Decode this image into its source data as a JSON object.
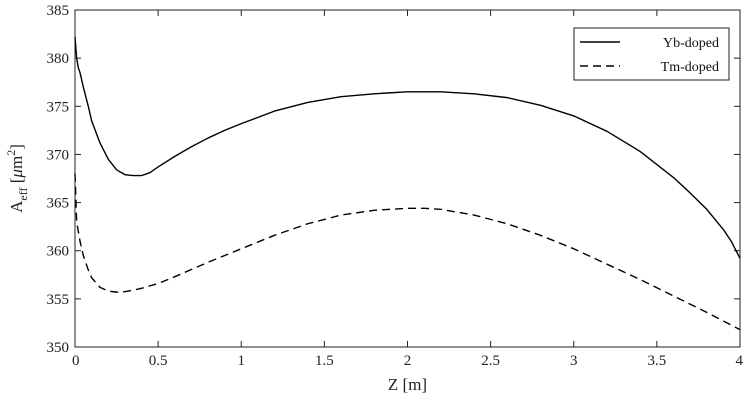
{
  "chart_data": {
    "type": "line",
    "title": "",
    "xlabel": "Z [m]",
    "ylabel": {
      "base": "A",
      "subscript": "eff",
      "unit_open": " [",
      "unit_mu": "μ",
      "unit_m": "m",
      "unit_sup": "2",
      "unit_close": "]"
    },
    "xlim": [
      0,
      4
    ],
    "ylim": [
      350,
      385
    ],
    "xticks": [
      "0",
      "0.5",
      "1",
      "1.5",
      "2",
      "2.5",
      "3",
      "3.5",
      "4"
    ],
    "yticks": [
      "350",
      "355",
      "360",
      "365",
      "370",
      "375",
      "380",
      "385"
    ],
    "grid": false,
    "legend_position": "top-right",
    "series": [
      {
        "name": "Yb-doped",
        "style": "solid",
        "color": "#000000",
        "x": [
          0,
          0.01,
          0.02,
          0.03,
          0.05,
          0.08,
          0.1,
          0.15,
          0.2,
          0.25,
          0.3,
          0.35,
          0.4,
          0.45,
          0.5,
          0.6,
          0.7,
          0.8,
          0.9,
          1.0,
          1.2,
          1.4,
          1.6,
          1.8,
          2.0,
          2.1,
          2.2,
          2.4,
          2.6,
          2.8,
          3.0,
          3.2,
          3.4,
          3.6,
          3.7,
          3.8,
          3.9,
          3.95,
          4.0
        ],
        "y": [
          382.2,
          380.0,
          379.0,
          378.5,
          377.0,
          375.0,
          373.5,
          371.2,
          369.5,
          368.4,
          367.9,
          367.8,
          367.8,
          368.1,
          368.7,
          369.8,
          370.8,
          371.7,
          372.5,
          373.2,
          374.5,
          375.4,
          376.0,
          376.3,
          376.5,
          376.5,
          376.5,
          376.3,
          375.9,
          375.1,
          374.0,
          372.4,
          370.3,
          367.6,
          366.0,
          364.3,
          362.2,
          360.9,
          359.2
        ]
      },
      {
        "name": "Tm-doped",
        "style": "dashed",
        "color": "#000000",
        "x": [
          0,
          0.01,
          0.02,
          0.03,
          0.05,
          0.08,
          0.1,
          0.15,
          0.2,
          0.25,
          0.3,
          0.35,
          0.4,
          0.5,
          0.6,
          0.8,
          1.0,
          1.2,
          1.4,
          1.6,
          1.8,
          2.0,
          2.1,
          2.2,
          2.4,
          2.6,
          2.8,
          3.0,
          3.2,
          3.4,
          3.6,
          3.8,
          4.0
        ],
        "y": [
          368.0,
          363.0,
          362.0,
          361.0,
          359.5,
          358.0,
          357.2,
          356.2,
          355.8,
          355.7,
          355.75,
          355.9,
          356.1,
          356.6,
          357.3,
          358.8,
          360.2,
          361.6,
          362.8,
          363.7,
          364.2,
          364.4,
          364.4,
          364.3,
          363.7,
          362.8,
          361.6,
          360.2,
          358.6,
          357.0,
          355.3,
          353.6,
          351.8
        ]
      }
    ]
  }
}
